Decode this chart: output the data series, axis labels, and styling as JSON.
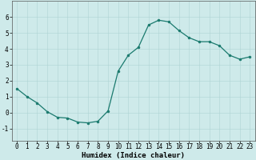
{
  "x": [
    0,
    1,
    2,
    3,
    4,
    5,
    6,
    7,
    8,
    9,
    10,
    11,
    12,
    13,
    14,
    15,
    16,
    17,
    18,
    19,
    20,
    21,
    22,
    23
  ],
  "y": [
    1.5,
    1.0,
    0.6,
    0.05,
    -0.3,
    -0.35,
    -0.6,
    -0.65,
    -0.55,
    0.1,
    2.6,
    3.6,
    4.1,
    5.5,
    5.8,
    5.7,
    5.15,
    4.7,
    4.45,
    4.45,
    4.2,
    3.6,
    3.35,
    3.5
  ],
  "line_color": "#1a7a6e",
  "marker": "o",
  "markersize": 2.0,
  "linewidth": 0.9,
  "xlabel": "Humidex (Indice chaleur)",
  "xlabel_fontsize": 6.5,
  "xlim": [
    -0.5,
    23.5
  ],
  "ylim": [
    -1.8,
    7.0
  ],
  "yticks": [
    -1,
    0,
    1,
    2,
    3,
    4,
    5,
    6
  ],
  "xticks": [
    0,
    1,
    2,
    3,
    4,
    5,
    6,
    7,
    8,
    9,
    10,
    11,
    12,
    13,
    14,
    15,
    16,
    17,
    18,
    19,
    20,
    21,
    22,
    23
  ],
  "tick_fontsize": 5.5,
  "background_color": "#ceeaea",
  "grid_color": "#afd4d4",
  "figsize": [
    3.2,
    2.0
  ],
  "dpi": 100
}
